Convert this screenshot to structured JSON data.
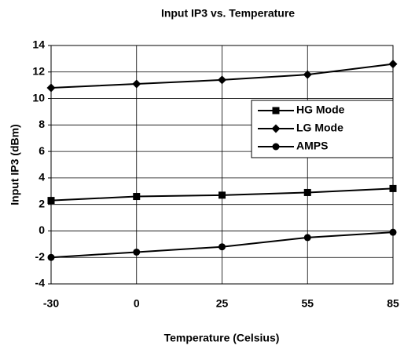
{
  "chart_data": {
    "type": "line",
    "title": "Input IP3 vs. Temperature",
    "x_label": "Temperature (Celsius)",
    "y_label": "Input IP3 (dBm)",
    "categories": [
      "-30",
      "0",
      "25",
      "55",
      "85"
    ],
    "series": [
      {
        "name": "HG Mode",
        "color": "#000000",
        "marker": "square",
        "values": [
          2.3,
          2.6,
          2.7,
          2.9,
          3.2
        ]
      },
      {
        "name": "LG Mode",
        "color": "#000000",
        "marker": "diamond",
        "values": [
          10.8,
          11.1,
          11.4,
          11.8,
          12.6
        ]
      },
      {
        "name": "AMPS",
        "color": "#000000",
        "marker": "circle",
        "values": [
          -2.0,
          -1.6,
          -1.2,
          -0.5,
          -0.1
        ]
      }
    ],
    "ylim": [
      -4,
      14
    ],
    "yticks": [
      -4,
      -2,
      0,
      2,
      4,
      6,
      8,
      10,
      12,
      14
    ],
    "grid": true,
    "legend": "upper right"
  }
}
